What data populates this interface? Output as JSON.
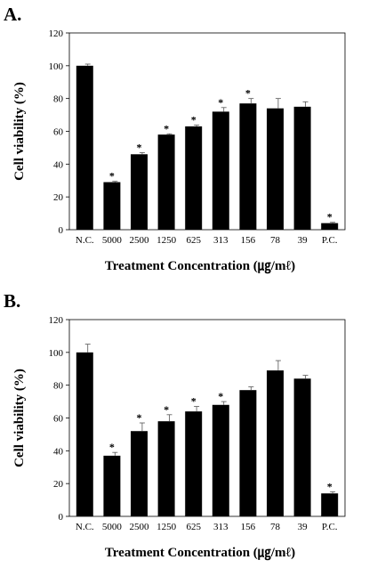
{
  "chart_data": [
    {
      "type": "bar",
      "panel_label": "A.",
      "categories": [
        "N.C.",
        "5000",
        "2500",
        "1250",
        "625",
        "313",
        "156",
        "78",
        "39",
        "P.C."
      ],
      "values": [
        100,
        29,
        46,
        58,
        63,
        72,
        77,
        74,
        75,
        4
      ],
      "errors": [
        1,
        0.5,
        1,
        0.5,
        0.8,
        2.5,
        3,
        6,
        3,
        0.5
      ],
      "significant": [
        false,
        true,
        true,
        true,
        true,
        true,
        true,
        false,
        false,
        true
      ],
      "significance_marker": "*",
      "xlabel": "Treatment Concentration (㎍/mℓ)",
      "ylabel": "Cell viability (%)",
      "ylim": [
        0,
        120
      ],
      "yticks": [
        0,
        20,
        40,
        60,
        80,
        100,
        120
      ],
      "grid": false,
      "bar_color": "#000000"
    },
    {
      "type": "bar",
      "panel_label": "B.",
      "categories": [
        "N.C.",
        "5000",
        "2500",
        "1250",
        "625",
        "313",
        "156",
        "78",
        "39",
        "P.C."
      ],
      "values": [
        100,
        37,
        52,
        58,
        64,
        68,
        77,
        89,
        84,
        14
      ],
      "errors": [
        5,
        2,
        5,
        4,
        3,
        2,
        2,
        6,
        2,
        1
      ],
      "significant": [
        false,
        true,
        true,
        true,
        true,
        true,
        false,
        false,
        false,
        true
      ],
      "significance_marker": "*",
      "xlabel": "Treatment Concentration (㎍/mℓ)",
      "ylabel": "Cell viability (%)",
      "ylim": [
        0,
        120
      ],
      "yticks": [
        0,
        20,
        40,
        60,
        80,
        100,
        120
      ],
      "grid": false,
      "bar_color": "#000000"
    }
  ]
}
